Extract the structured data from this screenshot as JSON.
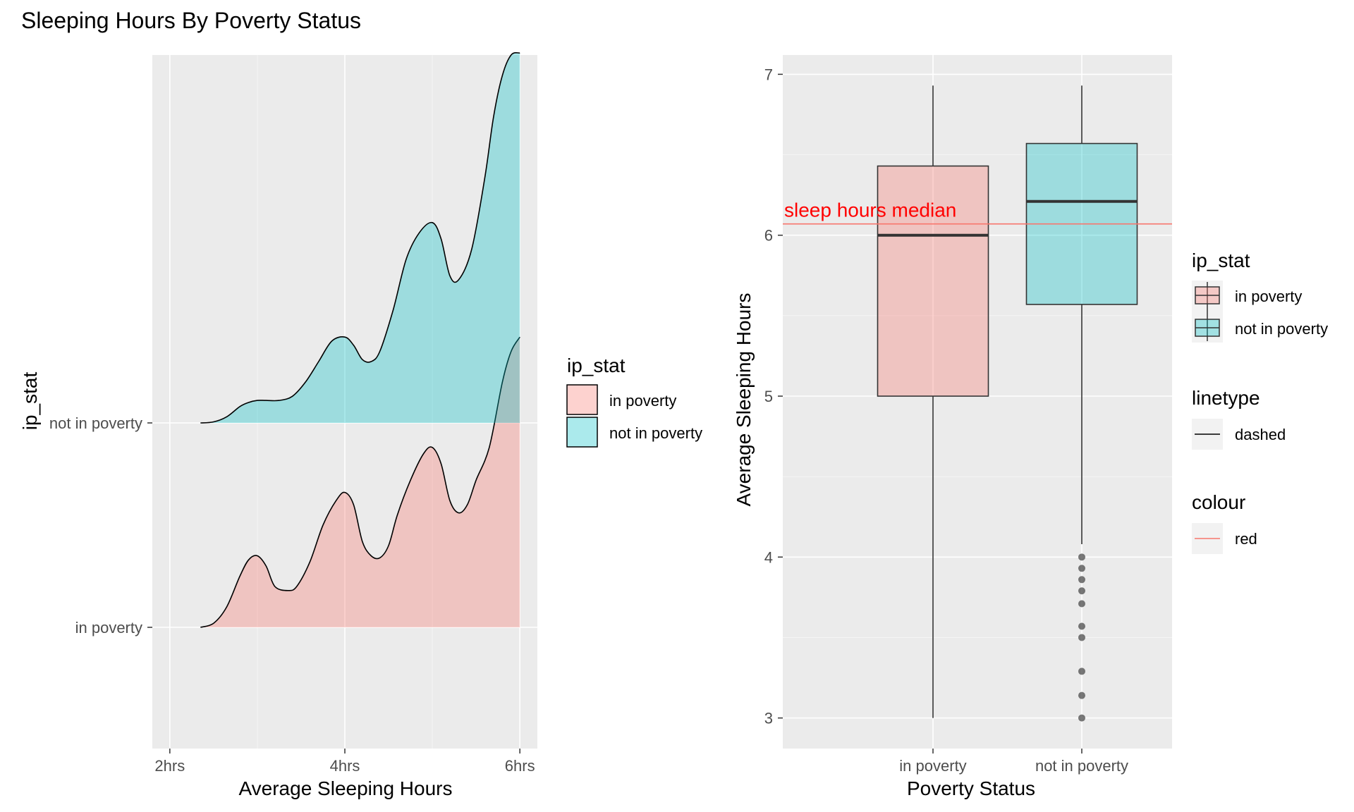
{
  "title": "Sleeping Hours By Poverty Status",
  "colors": {
    "in_poverty": "#F8766D",
    "not_in_poverty": "#00BFC4",
    "panel_bg": "#EBEBEB",
    "grid_major": "#FFFFFF",
    "median_line": "#F8766D",
    "annotation": "#FF0000"
  },
  "chart_data": [
    {
      "type": "area",
      "subtype": "ridgeline-density",
      "xlabel": "Average Sleeping Hours",
      "ylabel": "ip_stat",
      "xlim": [
        1.8,
        6.2
      ],
      "x_ticks": [
        2,
        4,
        6
      ],
      "x_tick_labels": [
        "2hrs",
        "4hrs",
        "6hrs"
      ],
      "y_tick_labels": [
        "in poverty",
        "not in poverty"
      ],
      "grid": true,
      "legend": {
        "title": "ip_stat",
        "position": "right",
        "entries": [
          "in poverty",
          "not in poverty"
        ]
      },
      "series": [
        {
          "name": "in poverty",
          "x": [
            2.35,
            2.5,
            2.65,
            2.8,
            2.9,
            3.0,
            3.1,
            3.2,
            3.35,
            3.45,
            3.6,
            3.75,
            3.9,
            4.0,
            4.1,
            4.2,
            4.3,
            4.4,
            4.5,
            4.6,
            4.75,
            4.9,
            5.0,
            5.1,
            5.2,
            5.3,
            5.4,
            5.5,
            5.65,
            5.8,
            5.9,
            6.0
          ],
          "height": [
            0.0,
            0.02,
            0.1,
            0.25,
            0.33,
            0.35,
            0.3,
            0.2,
            0.18,
            0.2,
            0.32,
            0.5,
            0.62,
            0.66,
            0.6,
            0.42,
            0.35,
            0.34,
            0.4,
            0.55,
            0.72,
            0.85,
            0.88,
            0.8,
            0.62,
            0.56,
            0.6,
            0.72,
            0.88,
            1.2,
            1.35,
            1.42
          ]
        },
        {
          "name": "not in poverty",
          "x": [
            2.35,
            2.5,
            2.65,
            2.8,
            2.9,
            3.0,
            3.1,
            3.25,
            3.4,
            3.55,
            3.7,
            3.85,
            4.0,
            4.1,
            4.2,
            4.3,
            4.4,
            4.55,
            4.7,
            4.85,
            5.0,
            5.1,
            5.2,
            5.3,
            5.45,
            5.6,
            5.7,
            5.8,
            5.9,
            6.0
          ],
          "height": [
            0.0,
            0.005,
            0.03,
            0.08,
            0.1,
            0.11,
            0.11,
            0.11,
            0.13,
            0.2,
            0.3,
            0.4,
            0.42,
            0.38,
            0.31,
            0.3,
            0.35,
            0.55,
            0.8,
            0.93,
            0.98,
            0.9,
            0.72,
            0.7,
            0.85,
            1.2,
            1.5,
            1.7,
            1.8,
            1.81
          ]
        }
      ]
    },
    {
      "type": "box",
      "xlabel": "Poverty Status",
      "ylabel": "Average Sleeping Hours",
      "categories": [
        "in poverty",
        "not in poverty"
      ],
      "ylim": [
        2.81,
        7.12
      ],
      "y_ticks": [
        3,
        4,
        5,
        6,
        7
      ],
      "grid": true,
      "boxes": [
        {
          "name": "in poverty",
          "lower_whisker": 3.0,
          "q1": 5.0,
          "median": 6.0,
          "q3": 6.43,
          "upper_whisker": 6.93,
          "outliers": []
        },
        {
          "name": "not in poverty",
          "lower_whisker": 4.08,
          "q1": 5.57,
          "median": 6.21,
          "q3": 6.57,
          "upper_whisker": 6.93,
          "outliers": [
            4.0,
            3.93,
            3.86,
            3.79,
            3.71,
            3.57,
            3.5,
            3.29,
            3.14,
            3.0
          ]
        }
      ],
      "reference_line": {
        "y": 6.07,
        "label": "sleep hours median"
      },
      "legends": [
        {
          "title": "ip_stat",
          "entries": [
            "in poverty",
            "not in poverty"
          ]
        },
        {
          "title": "linetype",
          "entries": [
            "dashed"
          ]
        },
        {
          "title": "colour",
          "entries": [
            "red"
          ]
        }
      ]
    }
  ]
}
